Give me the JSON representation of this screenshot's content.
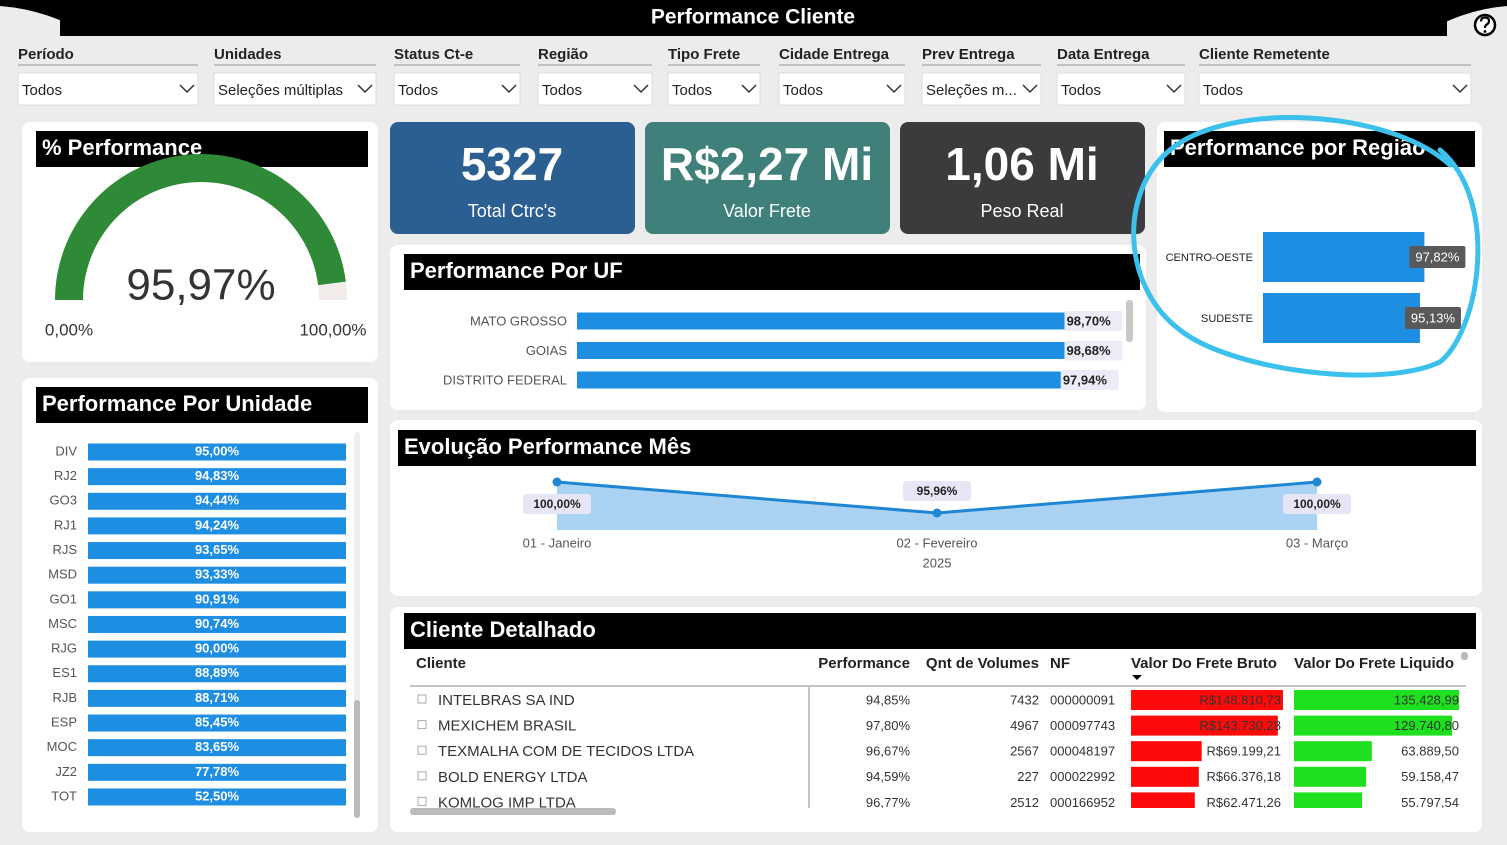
{
  "header": {
    "title": "Performance Cliente"
  },
  "filters": [
    {
      "label": "Período",
      "value": "Todos"
    },
    {
      "label": "Unidades",
      "value": "Seleções múltiplas"
    },
    {
      "label": "Status Ct-e",
      "value": "Todos"
    },
    {
      "label": "Região",
      "value": "Todos"
    },
    {
      "label": "Tipo Frete",
      "value": "Todos"
    },
    {
      "label": "Cidade Entrega",
      "value": "Todos"
    },
    {
      "label": "Prev Entrega",
      "value": "Seleções m..."
    },
    {
      "label": "Data Entrega",
      "value": "Todos"
    },
    {
      "label": "Cliente Remetente",
      "value": "Todos"
    }
  ],
  "kpis": [
    {
      "value": "5327",
      "label": "Total Ctrc's",
      "color": "#2b5f92"
    },
    {
      "value": "R$2,27 Mi",
      "label": "Valor Frete",
      "color": "#3f807a"
    },
    {
      "value": "1,06 Mi",
      "label": "Peso Real",
      "color": "#3b3b3d"
    }
  ],
  "unit_table": {
    "title": "Performance Por Unidade",
    "color": "#1e8ee3",
    "rows": [
      [
        "DIV",
        "95,00%"
      ],
      [
        "RJ2",
        "94,83%"
      ],
      [
        "GO3",
        "94,44%"
      ],
      [
        "RJ1",
        "94,24%"
      ],
      [
        "RJS",
        "93,65%"
      ],
      [
        "MSD",
        "93,33%"
      ],
      [
        "GO1",
        "90,91%"
      ],
      [
        "MSC",
        "90,74%"
      ],
      [
        "RJG",
        "90,00%"
      ],
      [
        "ES1",
        "88,89%"
      ],
      [
        "RJB",
        "88,71%"
      ],
      [
        "ESP",
        "85,45%"
      ],
      [
        "MOC",
        "83,65%"
      ],
      [
        "JZ2",
        "77,78%"
      ],
      [
        "TOT",
        "52,50%"
      ]
    ]
  },
  "chart_data": [
    {
      "type": "gauge",
      "title": "% Performance",
      "value": 95.97,
      "value_label": "95,97%",
      "color": "#2e8a36",
      "ylim": [
        0,
        100
      ],
      "yticks": [
        {
          "value": 0,
          "label": "0,00%"
        },
        {
          "value": 100,
          "label": "100,00%"
        }
      ]
    },
    {
      "type": "hbar",
      "title": "Performance Por UF",
      "categories": [
        "MATO GROSSO",
        "GOIAS",
        "DISTRITO FEDERAL"
      ],
      "values": [
        98.7,
        98.68,
        97.94
      ],
      "value_labels": [
        "98,70%",
        "98,68%",
        "97,94%"
      ],
      "color": "#1e8ee3",
      "xlim": [
        0,
        100
      ]
    },
    {
      "type": "hbar",
      "title": "Performance por Região",
      "categories": [
        "CENTRO-OESTE",
        "SUDESTE"
      ],
      "values": [
        97.82,
        95.13
      ],
      "value_labels": [
        "97,82%",
        "95,13%"
      ],
      "color": "#1e8ee3",
      "xlim": [
        0,
        100
      ]
    },
    {
      "type": "line",
      "title": "Evolução Performance Mês",
      "categories": [
        "01 - Janeiro",
        "02 - Fevereiro",
        "03 - Março"
      ],
      "xlabel": "2025",
      "values": [
        100,
        95.96,
        100
      ],
      "value_labels": [
        "100,00%",
        "95,96%",
        "100,00%"
      ],
      "color": "#1f86d4",
      "ylim": [
        93.74,
        100
      ]
    }
  ],
  "table": {
    "title": "Cliente Detalhado",
    "columns": [
      "Cliente",
      "Performance",
      "Qnt de Volumes",
      "NF",
      "Valor Do Frete Bruto",
      "Valor Do Frete Liquido"
    ],
    "bar_colors": [
      "#ff0a0a",
      "#1fe01f"
    ],
    "rows": [
      [
        "INTELBRAS SA IND",
        "94,85%",
        "7432",
        "000000091",
        {
          "value": 148810.73,
          "label": "R$148.810,73"
        },
        {
          "value": 135428.99,
          "label": "135.428,99"
        }
      ],
      [
        "MEXICHEM BRASIL",
        "97,80%",
        "4967",
        "000097743",
        {
          "value": 143730.28,
          "label": "R$143.730,28"
        },
        {
          "value": 129740.8,
          "label": "129.740,80"
        }
      ],
      [
        "TEXMALHA COM DE TECIDOS LTDA",
        "96,67%",
        "2567",
        "000048197",
        {
          "value": 69199.21,
          "label": "R$69.199,21"
        },
        {
          "value": 63889.5,
          "label": "63.889,50"
        }
      ],
      [
        "BOLD ENERGY LTDA",
        "94,59%",
        "227",
        "000022992",
        {
          "value": 66376.18,
          "label": "R$66.376,18"
        },
        {
          "value": 59158.47,
          "label": "59.158,47"
        }
      ],
      [
        "KOMLOG IMP LTDA",
        "96,77%",
        "2512",
        "000166952",
        {
          "value": 62471.26,
          "label": "R$62.471,26"
        },
        {
          "value": 55797.54,
          "label": "55.797,54"
        }
      ]
    ]
  }
}
